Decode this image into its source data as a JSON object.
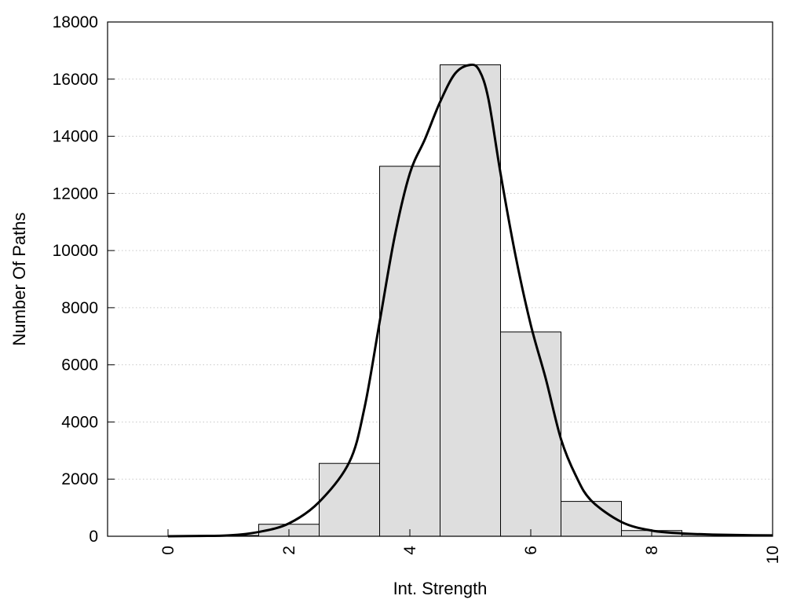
{
  "chart_data": {
    "type": "bar",
    "title": "",
    "xlabel": "Int. Strength",
    "ylabel": "Number Of Paths",
    "xlim": [
      -1,
      10
    ],
    "ylim": [
      0,
      18000
    ],
    "x_ticks": [
      0,
      2,
      4,
      6,
      8,
      10
    ],
    "y_ticks": [
      0,
      2000,
      4000,
      6000,
      8000,
      10000,
      12000,
      14000,
      16000,
      18000
    ],
    "grid": "horizontal-dotted",
    "bar_width": 1,
    "bars": [
      {
        "x": 0,
        "value": 0
      },
      {
        "x": 1,
        "value": 30
      },
      {
        "x": 2,
        "value": 420
      },
      {
        "x": 3,
        "value": 2550
      },
      {
        "x": 4,
        "value": 12950
      },
      {
        "x": 5,
        "value": 16500
      },
      {
        "x": 6,
        "value": 7150
      },
      {
        "x": 7,
        "value": 1220
      },
      {
        "x": 8,
        "value": 200
      },
      {
        "x": 9,
        "value": 60
      }
    ],
    "curve": {
      "x": [
        0,
        0.5,
        1,
        1.5,
        2,
        2.5,
        3,
        3.25,
        3.5,
        3.75,
        4,
        4.25,
        4.5,
        4.75,
        5,
        5.15,
        5.3,
        5.5,
        5.75,
        6,
        6.25,
        6.5,
        6.75,
        7,
        7.5,
        8,
        8.5,
        9,
        9.5,
        10
      ],
      "y": [
        0,
        10,
        30,
        150,
        450,
        1200,
        2600,
        4500,
        7500,
        10500,
        12700,
        13900,
        15200,
        16200,
        16500,
        16300,
        15300,
        12700,
        9800,
        7400,
        5500,
        3400,
        2100,
        1250,
        500,
        200,
        100,
        60,
        40,
        30
      ]
    },
    "colors": {
      "bar_fill": "#dedede",
      "bar_stroke": "#000000",
      "curve": "#000000",
      "grid": "#c8c8c8"
    }
  }
}
